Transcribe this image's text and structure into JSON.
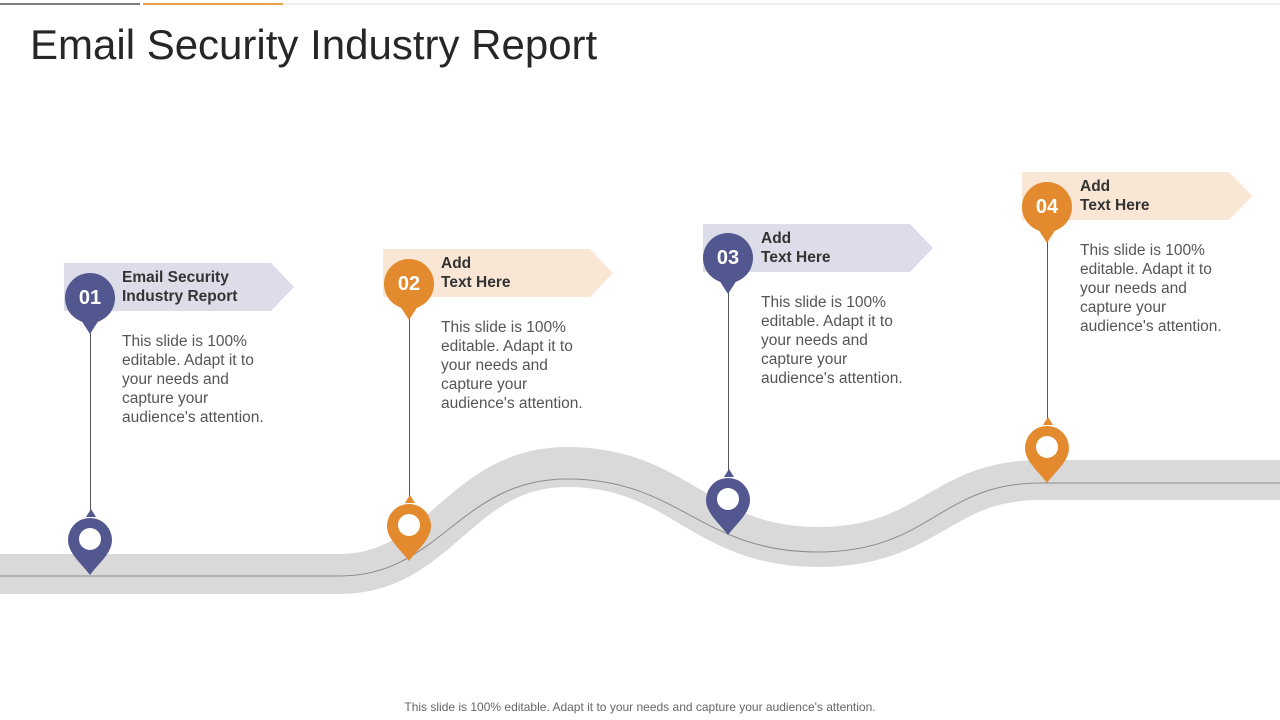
{
  "title": "Email Security Industry Report",
  "footer": "This slide is 100% editable. Adapt it to your needs and capture your audience's attention.",
  "colors": {
    "purple": "#53578f",
    "orange": "#e38a2e",
    "purple_banner": "#dcdde8",
    "orange_banner": "#fae6d4",
    "road": "#d9d9d9",
    "road_line": "#8c8c8c",
    "top_line_dark": "#7f7f7f",
    "top_line_orange": "#e8a24a",
    "top_line_light": "#eeeeee"
  },
  "steps": [
    {
      "number": "01",
      "label": "Email Security\nIndustry Report",
      "description": "This slide is 100% editable. Adapt it to your needs and capture your audience's attention.",
      "color": "purple",
      "icon": "location-pin-icon"
    },
    {
      "number": "02",
      "label": "Add\nText Here",
      "description": "This slide is 100% editable. Adapt it to your needs and capture your audience's attention.",
      "color": "orange",
      "icon": "location-pin-icon"
    },
    {
      "number": "03",
      "label": "Add\nText Here",
      "description": "This slide is 100% editable. Adapt it to your needs and capture your audience's attention.",
      "color": "purple",
      "icon": "location-pin-icon"
    },
    {
      "number": "04",
      "label": "Add\nText Here",
      "description": "This slide is 100% editable. Adapt it to your needs and capture your audience's attention.",
      "color": "orange",
      "icon": "location-pin-icon"
    }
  ]
}
